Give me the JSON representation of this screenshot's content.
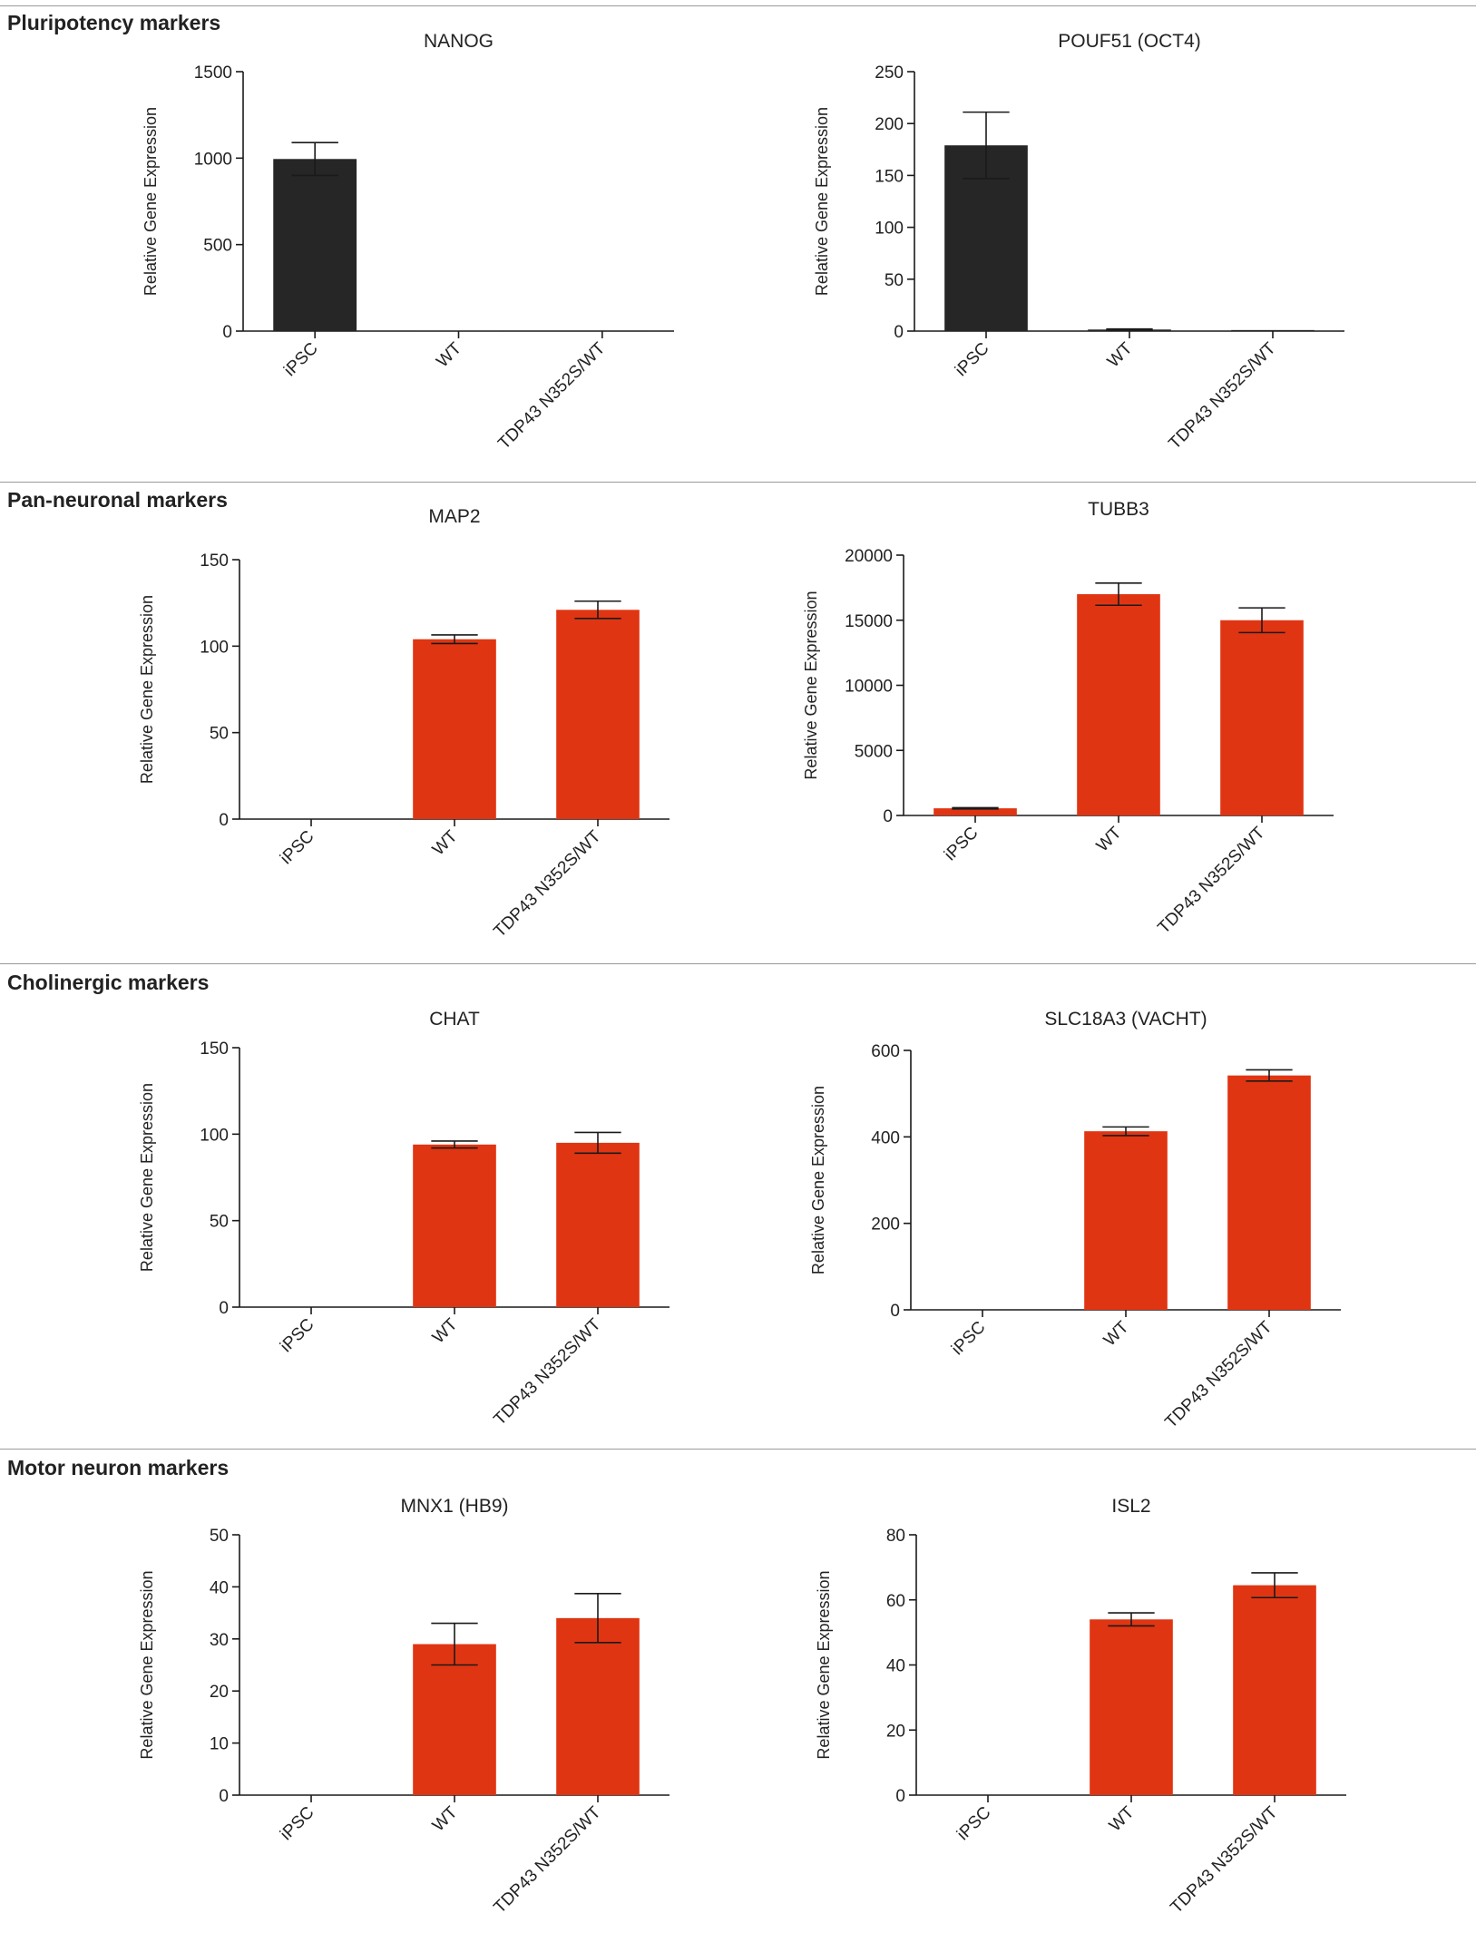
{
  "colors": {
    "pluripotency": "#262626",
    "neuronal": "#e03512",
    "axis": "#1a1a1a"
  },
  "sections": [
    {
      "title": "Pluripotency markers"
    },
    {
      "title": "Pan-neuronal markers"
    },
    {
      "title": "Cholinergic markers"
    },
    {
      "title": "Motor neuron markers"
    }
  ],
  "chart_data": [
    {
      "type": "bar",
      "title": "NANOG",
      "ylabel": "Relative Gene Expression",
      "xlabel": "",
      "categories": [
        "iPSC",
        "WT",
        "TDP43 N352S/WT"
      ],
      "values": [
        995,
        2,
        3
      ],
      "errors": [
        95,
        0,
        0
      ],
      "ylim": [
        0,
        1500
      ],
      "yticks": [
        0,
        500,
        1000,
        1500
      ],
      "color": "#262626"
    },
    {
      "type": "bar",
      "title": "POUF51 (OCT4)",
      "ylabel": "Relative Gene Expression",
      "xlabel": "",
      "categories": [
        "iPSC",
        "WT",
        "TDP43 N352S/WT"
      ],
      "values": [
        179,
        1.5,
        1
      ],
      "errors": [
        32,
        0.5,
        0
      ],
      "ylim": [
        0,
        250
      ],
      "yticks": [
        0,
        50,
        100,
        150,
        200,
        250
      ],
      "color": "#262626"
    },
    {
      "type": "bar",
      "title": "MAP2",
      "ylabel": "Relative Gene Expression",
      "xlabel": "",
      "categories": [
        "iPSC",
        "WT",
        "TDP43 N352S/WT"
      ],
      "values": [
        0,
        104,
        121
      ],
      "errors": [
        0,
        2.5,
        5
      ],
      "ylim": [
        0,
        150
      ],
      "yticks": [
        0,
        50,
        100,
        150
      ],
      "color": "#e03512"
    },
    {
      "type": "bar",
      "title": "TUBB3",
      "ylabel": "Relative Gene Expression",
      "xlabel": "",
      "categories": [
        "iPSC",
        "WT",
        "TDP43 N352S/WT"
      ],
      "values": [
        550,
        17000,
        15000
      ],
      "errors": [
        50,
        850,
        950
      ],
      "ylim": [
        0,
        20000
      ],
      "yticks": [
        0,
        5000,
        10000,
        15000,
        20000
      ],
      "color": "#e03512"
    },
    {
      "type": "bar",
      "title": "CHAT",
      "ylabel": "Relative Gene Expression",
      "xlabel": "",
      "categories": [
        "iPSC",
        "WT",
        "TDP43 N352S/WT"
      ],
      "values": [
        0,
        94,
        95
      ],
      "errors": [
        0,
        2,
        6
      ],
      "ylim": [
        0,
        150
      ],
      "yticks": [
        0,
        50,
        100,
        150
      ],
      "color": "#e03512"
    },
    {
      "type": "bar",
      "title": "SLC18A3 (VACHT)",
      "ylabel": "Relative Gene Expression",
      "xlabel": "",
      "categories": [
        "iPSC",
        "WT",
        "TDP43 N352S/WT"
      ],
      "values": [
        0,
        413,
        542
      ],
      "errors": [
        0,
        10,
        13
      ],
      "ylim": [
        0,
        600
      ],
      "yticks": [
        0,
        200,
        400,
        600
      ],
      "color": "#e03512"
    },
    {
      "type": "bar",
      "title": "MNX1 (HB9)",
      "ylabel": "Relative Gene Expression",
      "xlabel": "",
      "categories": [
        "iPSC",
        "WT",
        "TDP43 N352S/WT"
      ],
      "values": [
        0,
        29,
        34
      ],
      "errors": [
        0,
        4,
        4.7
      ],
      "ylim": [
        0,
        50
      ],
      "yticks": [
        0,
        10,
        20,
        30,
        40,
        50
      ],
      "color": "#e03512"
    },
    {
      "type": "bar",
      "title": "ISL2",
      "ylabel": "Relative Gene Expression",
      "xlabel": "",
      "categories": [
        "iPSC",
        "WT",
        "TDP43 N352S/WT"
      ],
      "values": [
        0,
        54,
        64.5
      ],
      "errors": [
        0,
        2,
        3.8
      ],
      "ylim": [
        0,
        80
      ],
      "yticks": [
        0,
        20,
        40,
        60,
        80
      ],
      "color": "#e03512"
    }
  ]
}
